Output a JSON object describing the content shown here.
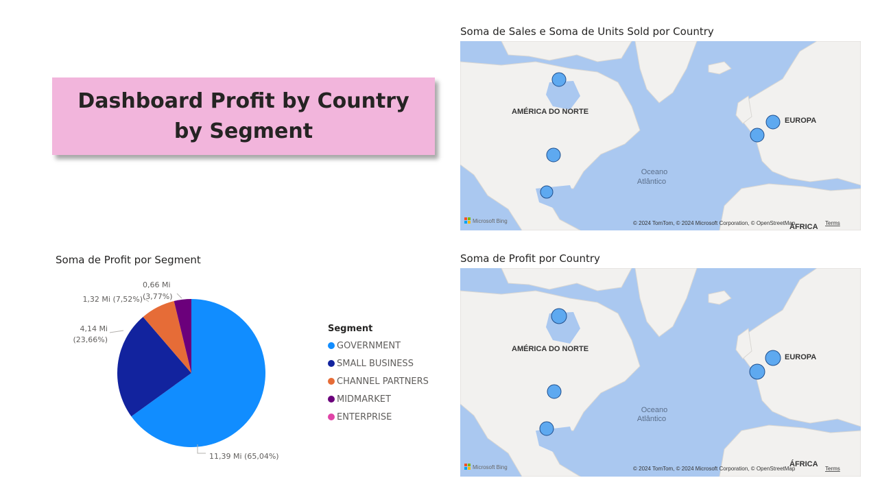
{
  "dashboard": {
    "title": "Dashboard Profit by Country by Segment"
  },
  "map_sales": {
    "title": "Soma de Sales e Soma de Units Sold por Country"
  },
  "map_profit": {
    "title": "Soma de Profit por Country"
  },
  "map_common": {
    "label_north_america": "AMÉRICA DO NORTE",
    "label_europe": "EUROPA",
    "label_africa": "ÁFRICA",
    "label_ocean_1": "Oceano",
    "label_ocean_2": "Atlântico",
    "bing_logo": "Microsoft Bing",
    "attribution": "© 2024 TomTom, © 2024 Microsoft Corporation, © OpenStreetMap",
    "terms": "Terms",
    "bubble_color": "#5ea9f0"
  },
  "chart_data": {
    "type": "pie",
    "title": "Soma de Profit por Segment",
    "legend_title": "Segment",
    "legend_position": "right",
    "slices": [
      {
        "name": "GOVERNMENT",
        "value": 11.39,
        "percent": 65.04,
        "label": "11,39 Mi (65,04%)",
        "color": "#118dff"
      },
      {
        "name": "SMALL BUSINESS",
        "value": 4.14,
        "percent": 23.66,
        "label_line1": "4,14 Mi",
        "label_line2": "(23,66%)",
        "color": "#12239e"
      },
      {
        "name": "CHANNEL PARTNERS",
        "value": 1.32,
        "percent": 7.52,
        "label": "1,32 Mi (7,52%)",
        "color": "#e66c37"
      },
      {
        "name": "MIDMARKET",
        "value": 0.66,
        "percent": 3.77,
        "label_line1": "0,66 Mi",
        "label_line2": "(3,77%)",
        "color": "#6b007b"
      },
      {
        "name": "ENTERPRISE",
        "value": 0,
        "percent": 0,
        "color": "#e044a7"
      }
    ]
  }
}
